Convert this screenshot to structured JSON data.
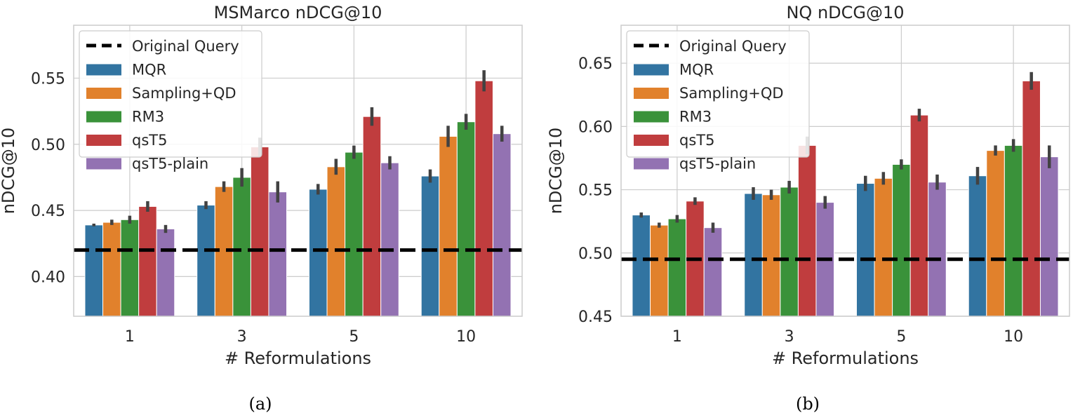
{
  "figure": {
    "captions": [
      "(a)",
      "(b)"
    ]
  },
  "colors": {
    "MQR": "#3274a1",
    "Sampling+QD": "#e1812c",
    "RM3": "#3a923a",
    "qsT5": "#c03d3e",
    "qsT5-plain": "#9372b2",
    "baseline": "#000000",
    "errorbar": "#424242",
    "grid": "#cccccc",
    "frame": "#cccccc",
    "text": "#262626"
  },
  "chart_data": [
    {
      "type": "bar",
      "title": "MSMarco nDCG@10",
      "xlabel": "# Reformulations",
      "ylabel": "nDCG@10",
      "categories": [
        "1",
        "3",
        "5",
        "10"
      ],
      "ylim": [
        0.37,
        0.59
      ],
      "yticks": [
        0.4,
        0.45,
        0.5,
        0.55
      ],
      "ytick_labels": [
        "0.40",
        "0.45",
        "0.50",
        "0.55"
      ],
      "grid": true,
      "legend_position": "top-left",
      "baseline": {
        "name": "Original Query",
        "value": 0.42,
        "style": "dashed"
      },
      "series": [
        {
          "name": "MQR",
          "values": [
            0.439,
            0.454,
            0.466,
            0.476
          ],
          "err": [
            0.001,
            0.003,
            0.004,
            0.005
          ]
        },
        {
          "name": "Sampling+QD",
          "values": [
            0.441,
            0.468,
            0.483,
            0.506
          ],
          "err": [
            0.002,
            0.004,
            0.006,
            0.008
          ]
        },
        {
          "name": "RM3",
          "values": [
            0.443,
            0.475,
            0.494,
            0.517
          ],
          "err": [
            0.003,
            0.007,
            0.005,
            0.006
          ]
        },
        {
          "name": "qsT5",
          "values": [
            0.453,
            0.498,
            0.521,
            0.548
          ],
          "err": [
            0.004,
            0.007,
            0.007,
            0.008
          ]
        },
        {
          "name": "qsT5-plain",
          "values": [
            0.436,
            0.464,
            0.486,
            0.508
          ],
          "err": [
            0.003,
            0.008,
            0.005,
            0.006
          ]
        }
      ]
    },
    {
      "type": "bar",
      "title": "NQ nDCG@10",
      "xlabel": "# Reformulations",
      "ylabel": "nDCG@10",
      "categories": [
        "1",
        "3",
        "5",
        "10"
      ],
      "ylim": [
        0.45,
        0.68
      ],
      "yticks": [
        0.45,
        0.5,
        0.55,
        0.6,
        0.65
      ],
      "ytick_labels": [
        "0.45",
        "0.50",
        "0.55",
        "0.60",
        "0.65"
      ],
      "grid": true,
      "legend_position": "top-left",
      "baseline": {
        "name": "Original Query",
        "value": 0.495,
        "style": "dashed"
      },
      "series": [
        {
          "name": "MQR",
          "values": [
            0.53,
            0.547,
            0.555,
            0.561
          ],
          "err": [
            0.002,
            0.005,
            0.006,
            0.007
          ]
        },
        {
          "name": "Sampling+QD",
          "values": [
            0.522,
            0.546,
            0.559,
            0.581
          ],
          "err": [
            0.002,
            0.004,
            0.005,
            0.004
          ]
        },
        {
          "name": "RM3",
          "values": [
            0.527,
            0.552,
            0.57,
            0.585
          ],
          "err": [
            0.003,
            0.005,
            0.004,
            0.005
          ]
        },
        {
          "name": "qsT5",
          "values": [
            0.541,
            0.585,
            0.609,
            0.636
          ],
          "err": [
            0.003,
            0.007,
            0.005,
            0.007
          ]
        },
        {
          "name": "qsT5-plain",
          "values": [
            0.52,
            0.54,
            0.556,
            0.576
          ],
          "err": [
            0.004,
            0.005,
            0.006,
            0.009
          ]
        }
      ]
    }
  ]
}
